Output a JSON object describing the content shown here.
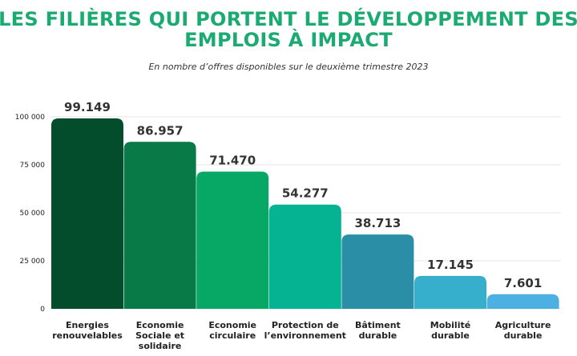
{
  "chart_data": {
    "type": "bar",
    "title_lines": [
      "Les filières qui portent le développement des",
      "emplois à impact"
    ],
    "subtitle": "En nombre d’offres disponibles sur le deuxième trimestre 2023",
    "categories": [
      [
        "Energies",
        "renouvelables"
      ],
      [
        "Economie",
        "Sociale et",
        "solidaire"
      ],
      [
        "Economie",
        "circulaire"
      ],
      [
        "Protection de",
        "l’environnement"
      ],
      [
        "Bâtiment",
        "durable"
      ],
      [
        "Mobilité",
        "durable"
      ],
      [
        "Agriculture",
        "durable"
      ]
    ],
    "values": [
      99149,
      86957,
      71470,
      54277,
      38713,
      17145,
      7601
    ],
    "value_labels": [
      "99.149",
      "86.957",
      "71.470",
      "54.277",
      "38.713",
      "17.145",
      "7.601"
    ],
    "colors": [
      "#044d2c",
      "#087a48",
      "#07a866",
      "#05b392",
      "#2a8fa6",
      "#36afcc",
      "#4cb0e2"
    ],
    "yticks": [
      {
        "value": 0,
        "label": "0"
      },
      {
        "value": 25000,
        "label": "25 000"
      },
      {
        "value": 50000,
        "label": "50 000"
      },
      {
        "value": 75000,
        "label": "75 000"
      },
      {
        "value": 100000,
        "label": "100 000"
      }
    ],
    "ylim": [
      0,
      100000
    ],
    "xlabel": "",
    "ylabel": "",
    "grid": true,
    "legend": "none"
  }
}
